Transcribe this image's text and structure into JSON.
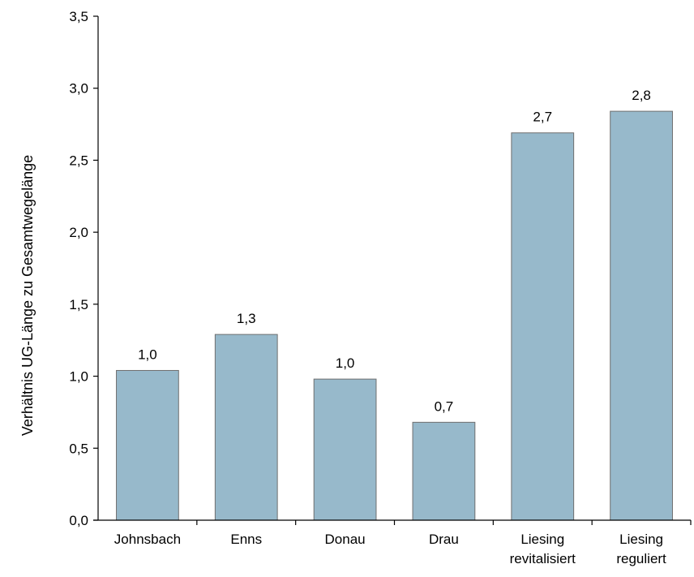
{
  "chart_data": {
    "type": "bar",
    "ylabel": "Verhältnis UG-Länge zu Gesamtwegelänge",
    "xlabel": "",
    "ylim": [
      0,
      3.5
    ],
    "yticks": [
      0,
      0.5,
      1.0,
      1.5,
      2.0,
      2.5,
      3.0,
      3.5
    ],
    "ytick_labels": [
      "0,0",
      "0,5",
      "1,0",
      "1,5",
      "2,0",
      "2,5",
      "3,0",
      "3,5"
    ],
    "categories": [
      [
        "Johnsbach"
      ],
      [
        "Enns"
      ],
      [
        "Donau"
      ],
      [
        "Drau"
      ],
      [
        "Liesing",
        "revitalisiert"
      ],
      [
        "Liesing",
        "reguliert"
      ]
    ],
    "values": [
      1.04,
      1.29,
      0.98,
      0.68,
      2.69,
      2.84
    ],
    "data_labels": [
      "1,0",
      "1,3",
      "1,0",
      "0,7",
      "2,7",
      "2,8"
    ],
    "grid": false,
    "legend": "none",
    "colors": {
      "bar_fill": "#97b9cb",
      "bar_stroke": "#6f6f6f",
      "axis": "#000000"
    }
  }
}
